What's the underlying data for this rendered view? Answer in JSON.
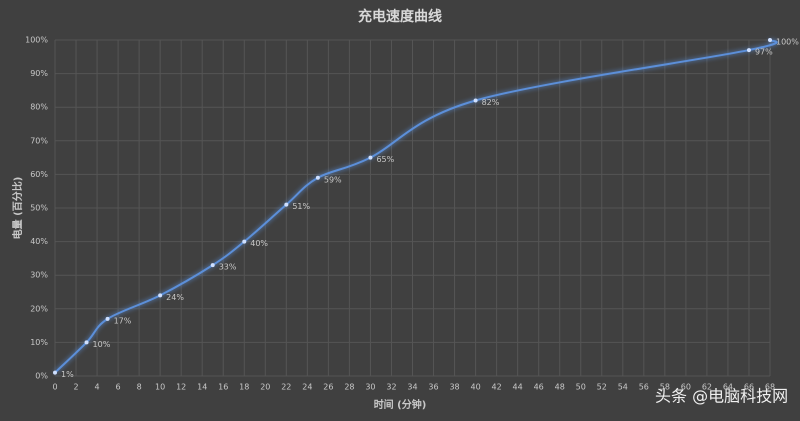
{
  "chart_data": {
    "type": "line",
    "title": "充电速度曲线",
    "x_label": "时间 (分钟)",
    "y_label": "电量 (百分比)",
    "x": [
      0,
      3,
      5,
      10,
      15,
      18,
      22,
      25,
      30,
      40,
      66,
      68
    ],
    "series": [
      {
        "name": "电量",
        "color": "#5b8fd9",
        "values": [
          1,
          10,
          17,
          24,
          33,
          40,
          51,
          59,
          65,
          82,
          97,
          100
        ],
        "value_labels": [
          "1%",
          "10%",
          "17%",
          "24%",
          "33%",
          "40%",
          "51%",
          "59%",
          "65%",
          "82%",
          "97%",
          "100%"
        ]
      }
    ],
    "xlim": [
      0,
      68
    ],
    "xticks": [
      0,
      2,
      4,
      6,
      8,
      10,
      12,
      14,
      16,
      18,
      20,
      22,
      24,
      26,
      28,
      30,
      32,
      34,
      36,
      38,
      40,
      42,
      44,
      46,
      48,
      50,
      52,
      54,
      56,
      58,
      60,
      62,
      64,
      66,
      68
    ],
    "ylim": [
      0,
      100
    ],
    "yticks": [
      {
        "value": 0,
        "label": "0%"
      },
      {
        "value": 10,
        "label": "10%"
      },
      {
        "value": 20,
        "label": "20%"
      },
      {
        "value": 30,
        "label": "30%"
      },
      {
        "value": 40,
        "label": "40%"
      },
      {
        "value": 50,
        "label": "50%"
      },
      {
        "value": 60,
        "label": "60%"
      },
      {
        "value": 70,
        "label": "70%"
      },
      {
        "value": 80,
        "label": "80%"
      },
      {
        "value": 90,
        "label": "90%"
      },
      {
        "value": 100,
        "label": "100%"
      }
    ],
    "grid": true,
    "watermark": "头条 @电脑科技网"
  }
}
